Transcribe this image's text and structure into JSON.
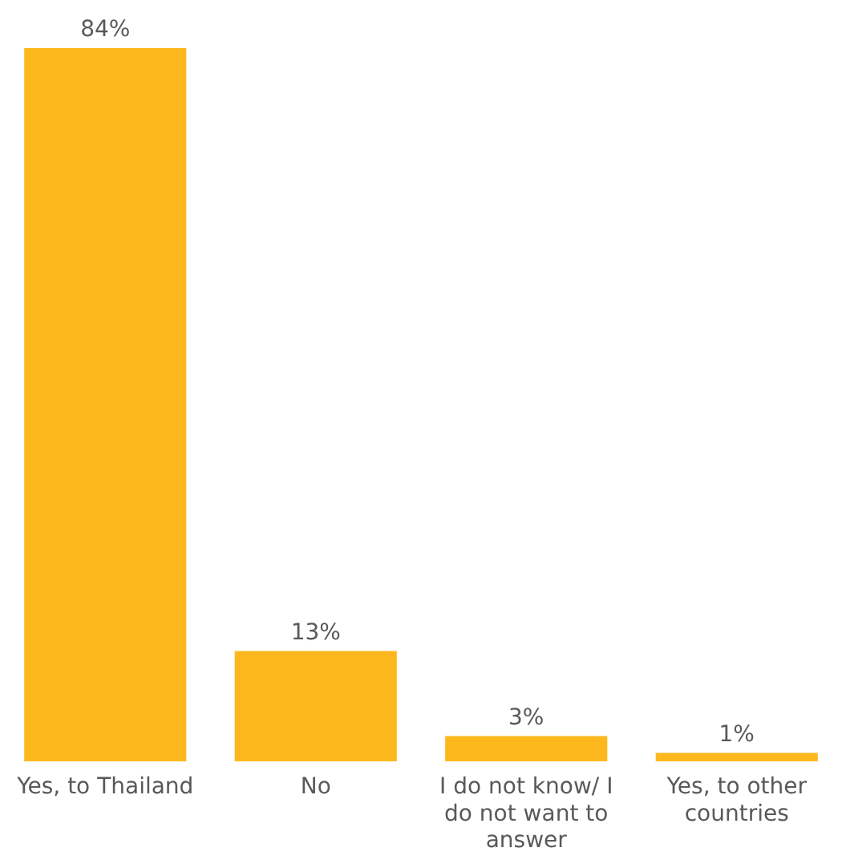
{
  "chart_data": {
    "type": "bar",
    "categories": [
      "Yes, to Thailand",
      "No",
      "I do not know/ I do not want to answer",
      "Yes, to other countries"
    ],
    "values": [
      84,
      13,
      3,
      1
    ],
    "color": "#fdb81e",
    "value_labels": [
      "84%",
      "13%",
      "3%",
      "1%"
    ]
  }
}
